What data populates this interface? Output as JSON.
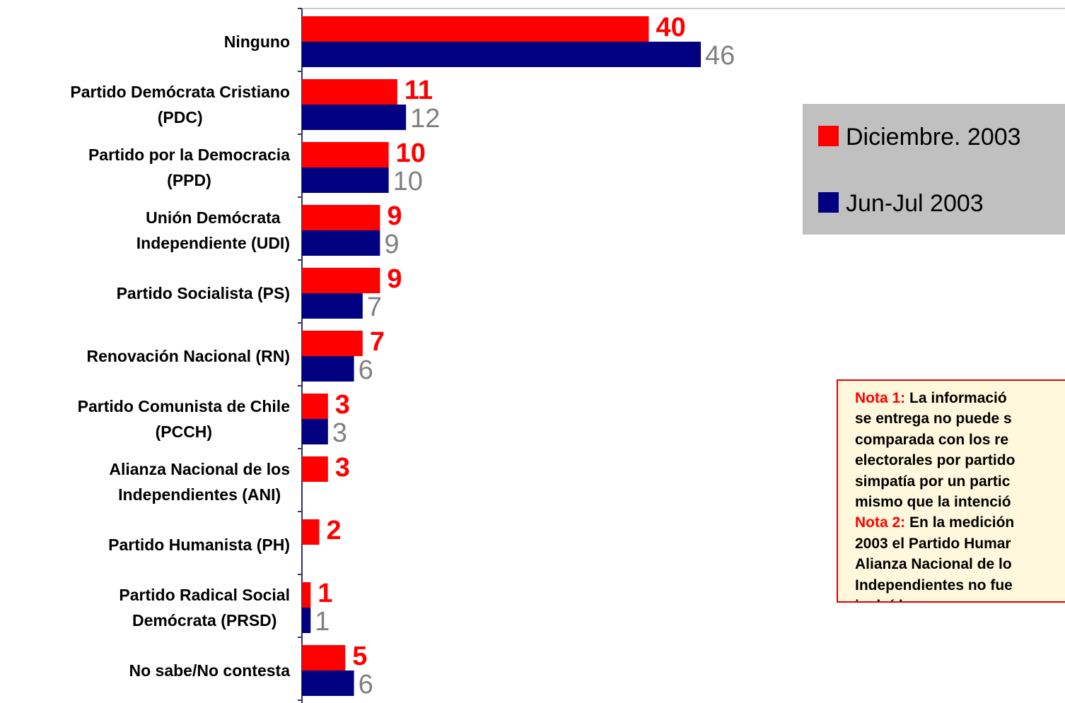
{
  "chart_data": {
    "type": "hbar",
    "categories": [
      "Ninguno",
      "Partido Demócrata Cristiano\n(PDC)",
      "Partido por la Democracia\n(PPD)",
      "Unión Demócrata\nIndependiente (UDI)",
      "Partido Socialista (PS)",
      "Renovación Nacional (RN)",
      "Partido Comunista de Chile\n(PCCH)",
      "Alianza Nacional de los\nIndependientes (ANI)",
      "Partido Humanista (PH)",
      "Partido Radical Social\nDemócrata (PRSD)",
      "No sabe/No contesta"
    ],
    "series": [
      {
        "name": "Diciembre. 2003",
        "color": "#ff0000",
        "label_color": "#ff0000",
        "values": [
          40,
          11,
          10,
          9,
          9,
          7,
          3,
          3,
          2,
          1,
          5
        ]
      },
      {
        "name": "Jun-Jul 2003",
        "color": "#000080",
        "label_color": "#808080",
        "values": [
          46,
          12,
          10,
          9,
          7,
          6,
          3,
          null,
          null,
          1,
          6
        ]
      }
    ],
    "xlim": [
      0,
      88
    ],
    "legend": "right",
    "notes": [
      {
        "label": "Nota 1:",
        "lines": [
          "La informació",
          "se entrega no puede s",
          "comparada con los re",
          "electorales por partido",
          "simpatía por un partic",
          "mismo que la intenció"
        ]
      },
      {
        "label": "Nota 2:",
        "lines": [
          "En la medición",
          "2003 el Partido Humar",
          "Alianza Nacional de lo",
          "Independientes no fue",
          "incluídos"
        ]
      }
    ]
  }
}
